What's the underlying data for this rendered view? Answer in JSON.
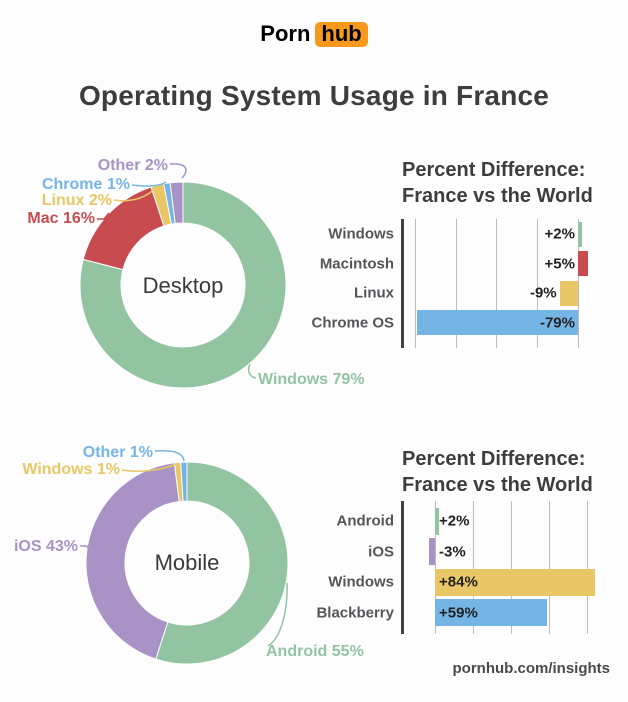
{
  "page": {
    "background": "#fdfdfd",
    "logo": {
      "part1": "Porn",
      "part2": "hub",
      "accent": "#f7991d"
    },
    "title": "Operating System Usage in France",
    "footer": "pornhub.com/insights"
  },
  "palette": {
    "green": "#92c4a1",
    "red": "#c84b4f",
    "yellow": "#e9c766",
    "blue": "#75b5e5",
    "purple": "#a992c6",
    "orange": "#f7991d",
    "dark_text": "#3d3d3d",
    "category_text": "#55565a",
    "grid": "#bcbcbc",
    "axis": "#424242"
  },
  "chart_data": [
    {
      "id": "desktop-donut",
      "type": "pie",
      "subtype": "donut",
      "center_label": "Desktop",
      "slices": [
        {
          "label": "Windows",
          "value_pct": 79,
          "color_key": "green",
          "label_text": "Windows 79%"
        },
        {
          "label": "Mac",
          "value_pct": 16,
          "color_key": "red",
          "label_text": "Mac 16%"
        },
        {
          "label": "Linux",
          "value_pct": 2,
          "color_key": "yellow",
          "label_text": "Linux 2%"
        },
        {
          "label": "Chrome",
          "value_pct": 1,
          "color_key": "blue",
          "label_text": "Chrome 1%"
        },
        {
          "label": "Other",
          "value_pct": 2,
          "color_key": "purple",
          "label_text": "Other 2%"
        }
      ]
    },
    {
      "id": "desktop-diff",
      "type": "bar",
      "orientation": "horizontal",
      "title_lines": [
        "Percent Difference:",
        "France vs the World"
      ],
      "categories": [
        "Windows",
        "Macintosh",
        "Linux",
        "Chrome OS"
      ],
      "values": [
        2,
        5,
        -9,
        -79
      ],
      "value_labels": [
        "+2%",
        "+5%",
        "-9%",
        "-79%"
      ],
      "bar_color_keys": [
        "green",
        "red",
        "yellow",
        "blue"
      ],
      "axis": {
        "gridline_pcts": [
          -80,
          -60,
          -40,
          -20,
          0
        ],
        "xlim": [
          -86,
          6
        ],
        "grid_on": true
      }
    },
    {
      "id": "mobile-donut",
      "type": "pie",
      "subtype": "donut",
      "center_label": "Mobile",
      "slices": [
        {
          "label": "Android",
          "value_pct": 55,
          "color_key": "green",
          "label_text": "Android 55%"
        },
        {
          "label": "iOS",
          "value_pct": 43,
          "color_key": "purple",
          "label_text": "iOS 43%"
        },
        {
          "label": "Windows",
          "value_pct": 1,
          "color_key": "yellow",
          "label_text": "Windows 1%"
        },
        {
          "label": "Other",
          "value_pct": 1,
          "color_key": "blue",
          "label_text": "Other 1%"
        }
      ]
    },
    {
      "id": "mobile-diff",
      "type": "bar",
      "orientation": "horizontal",
      "title_lines": [
        "Percent Difference:",
        "France vs the World"
      ],
      "categories": [
        "Android",
        "iOS",
        "Windows",
        "Blackberry"
      ],
      "values": [
        2,
        -3,
        84,
        59
      ],
      "value_labels": [
        "+2%",
        "-3%",
        "+84%",
        "+59%"
      ],
      "bar_color_keys": [
        "green",
        "purple",
        "yellow",
        "blue"
      ],
      "axis": {
        "gridline_pcts": [
          0,
          20,
          40,
          60,
          80
        ],
        "xlim": [
          -17,
          86
        ],
        "grid_on": true
      }
    }
  ]
}
